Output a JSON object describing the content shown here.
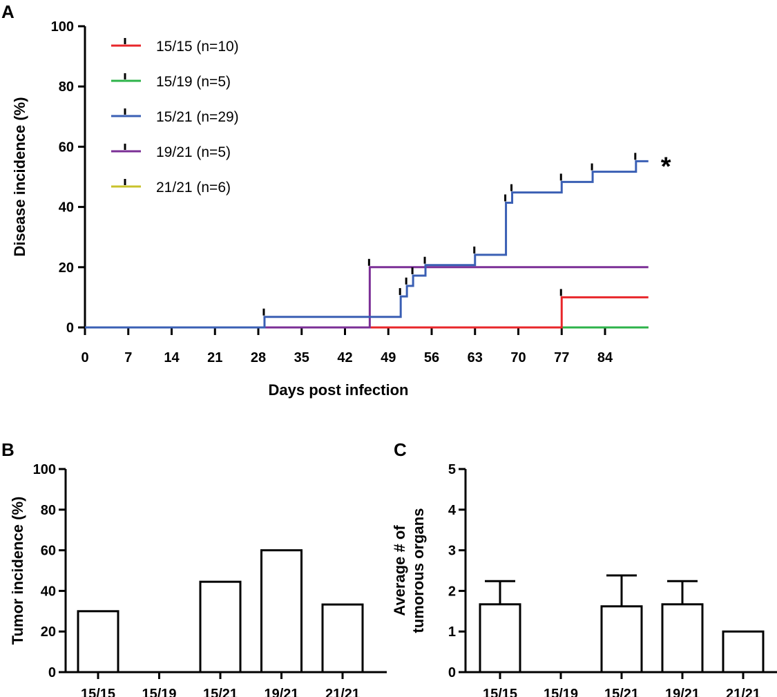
{
  "chart_data": [
    {
      "panel": "A",
      "type": "line",
      "subtype": "kaplan-meier-step",
      "title": "",
      "xlabel": "Days post infection",
      "ylabel": "Disease incidence (%)",
      "xlim": [
        0,
        91
      ],
      "ylim": [
        0,
        100
      ],
      "xticks": [
        "0",
        "7",
        "14",
        "21",
        "28",
        "35",
        "42",
        "49",
        "56",
        "63",
        "70",
        "77",
        "84"
      ],
      "yticks": [
        "0",
        "20",
        "40",
        "60",
        "80",
        "100"
      ],
      "annotation": "*",
      "legend_position": "top-left",
      "series": [
        {
          "name": "15/15 (n=10)",
          "color": "#e8262a",
          "x": [
            0,
            77,
            91
          ],
          "y": [
            0,
            10,
            10
          ],
          "censor_x": [
            77
          ]
        },
        {
          "name": "15/19 (n=5)",
          "color": "#2db34a",
          "x": [
            0,
            91
          ],
          "y": [
            0,
            0
          ],
          "censor_x": []
        },
        {
          "name": "15/21 (n=29)",
          "color": "#3a5fb4",
          "x": [
            0,
            29,
            51,
            52,
            53,
            55,
            63,
            68,
            69,
            77,
            82,
            89,
            91
          ],
          "y": [
            0,
            3.5,
            10.3,
            13.8,
            17.2,
            20.7,
            24.1,
            41.4,
            44.8,
            48.3,
            51.7,
            55.2,
            55.2
          ],
          "censor_x": [
            29,
            51,
            52,
            53,
            55,
            63,
            68,
            69,
            77,
            82,
            89
          ]
        },
        {
          "name": "19/21 (n=5)",
          "color": "#7b2f96",
          "x": [
            0,
            46,
            91
          ],
          "y": [
            0,
            20,
            20
          ],
          "censor_x": [
            46
          ]
        },
        {
          "name": "21/21 (n=6)",
          "color": "#c8c22b",
          "x": [
            0,
            91
          ],
          "y": [
            0,
            0
          ],
          "censor_x": []
        }
      ]
    },
    {
      "panel": "B",
      "type": "bar",
      "title": "",
      "xlabel": "",
      "ylabel": "Tumor incidence (%)",
      "ylim": [
        0,
        100
      ],
      "yticks": [
        "0",
        "20",
        "40",
        "60",
        "80",
        "100"
      ],
      "categories": [
        "15/15",
        "15/19",
        "15/21",
        "19/21",
        "21/21"
      ],
      "values": [
        30,
        0,
        44.5,
        60,
        33.3
      ]
    },
    {
      "panel": "C",
      "type": "bar",
      "title": "",
      "xlabel": "",
      "ylabel": [
        "Average # of",
        "tumorous organs"
      ],
      "ylim": [
        0,
        5
      ],
      "yticks": [
        "0",
        "1",
        "2",
        "3",
        "4",
        "5"
      ],
      "categories": [
        "15/15",
        "15/19",
        "15/21",
        "19/21",
        "21/21"
      ],
      "values": [
        1.67,
        0,
        1.62,
        1.67,
        1.0
      ],
      "error": [
        0.57,
        0,
        0.76,
        0.57,
        0
      ]
    }
  ]
}
